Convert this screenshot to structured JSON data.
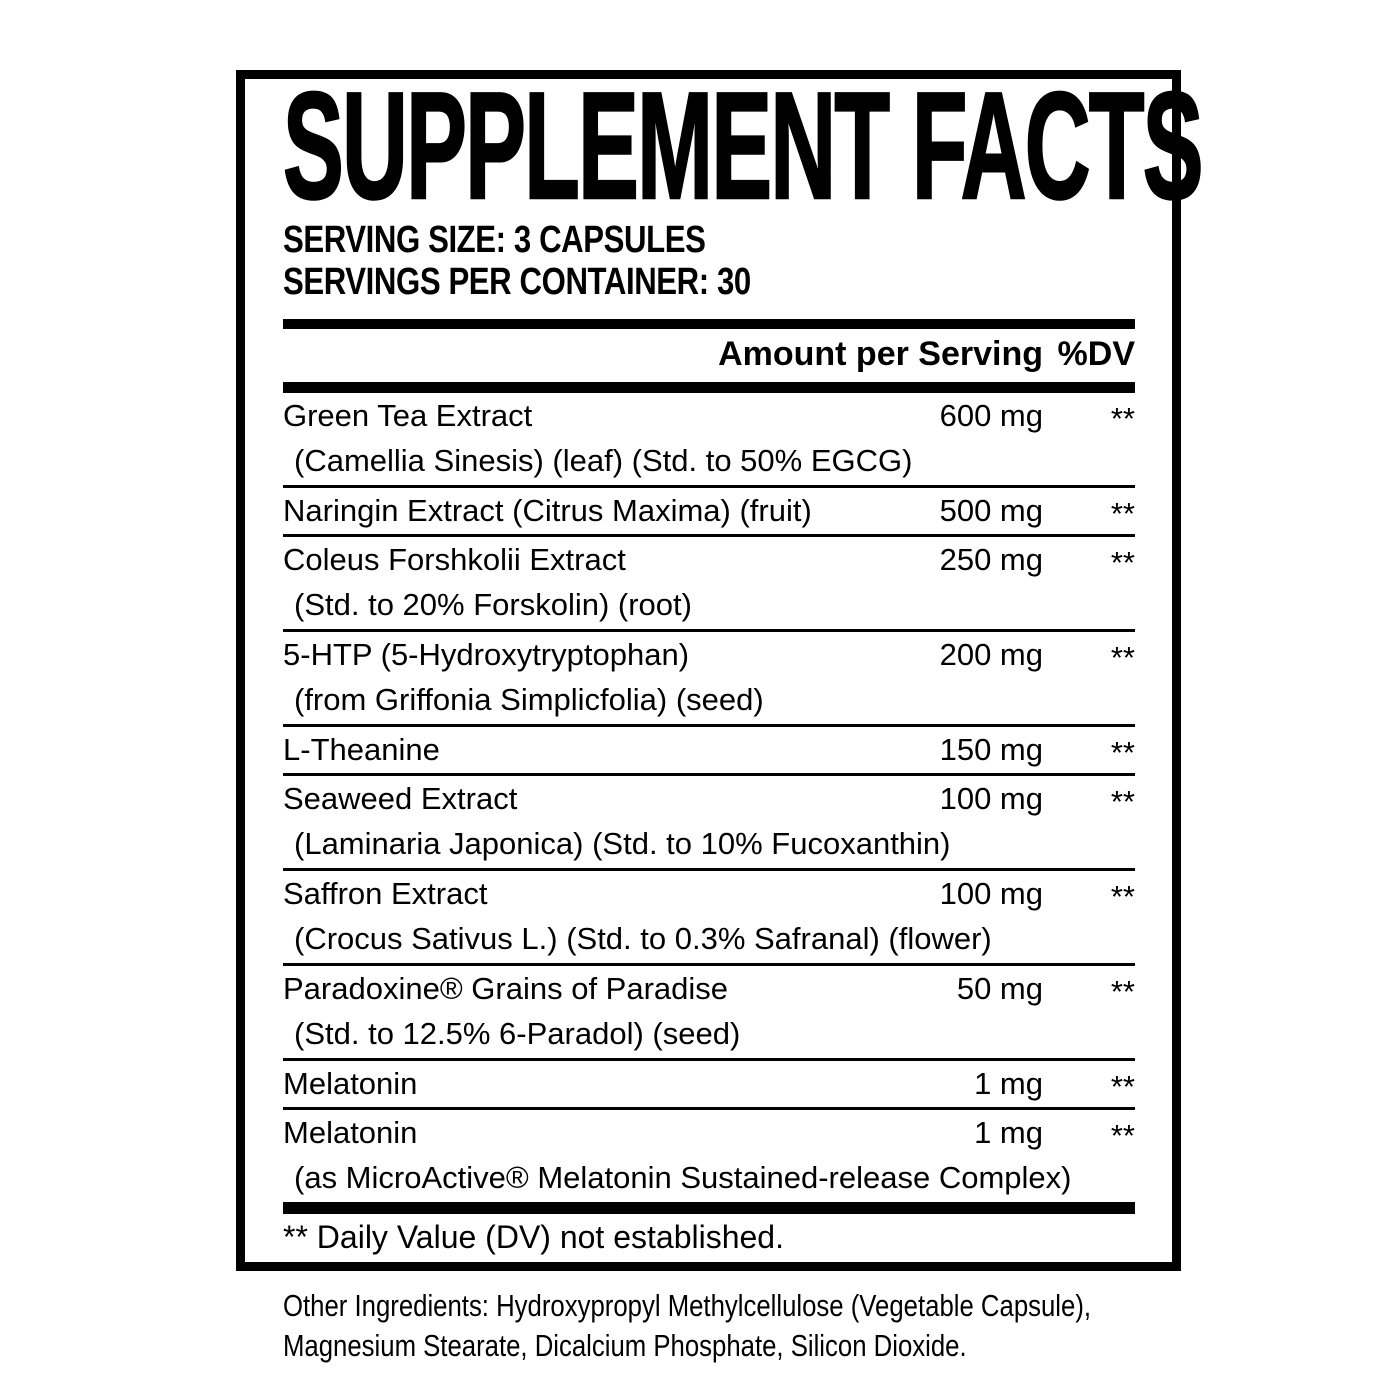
{
  "label": {
    "title": "SUPPLEMENT FACTS",
    "serving_size": "SERVING SIZE: 3 CAPSULES",
    "servings_per_container": "SERVINGS PER CONTAINER: 30",
    "columns": {
      "amount": "Amount per Serving",
      "dv": "%DV"
    },
    "rows": [
      {
        "name": "Green Tea Extract",
        "sub": "(Camellia Sinesis) (leaf) (Std. to 50% EGCG)",
        "amount": "600 mg",
        "dv": "**"
      },
      {
        "name": "Naringin Extract (Citrus Maxima) (fruit)",
        "amount": "500 mg",
        "dv": "**"
      },
      {
        "name": "Coleus Forshkolii Extract",
        "sub": "(Std. to 20% Forskolin) (root)",
        "amount": "250 mg",
        "dv": "**"
      },
      {
        "name": "5-HTP (5-Hydroxytryptophan)",
        "sub": "(from Griffonia Simplicfolia) (seed)",
        "amount": "200 mg",
        "dv": "**"
      },
      {
        "name": "L-Theanine",
        "amount": "150 mg",
        "dv": "**"
      },
      {
        "name": "Seaweed Extract",
        "sub": "(Laminaria Japonica) (Std. to 10% Fucoxanthin)",
        "amount": "100 mg",
        "dv": "**"
      },
      {
        "name": "Saffron Extract",
        "sub": "(Crocus Sativus L.) (Std. to 0.3% Safranal) (flower)",
        "amount": "100 mg",
        "dv": "**"
      },
      {
        "name": "Paradoxine® Grains of Paradise",
        "sub": "(Std. to 12.5% 6-Paradol) (seed)",
        "amount": "50 mg",
        "dv": "**"
      },
      {
        "name": "Melatonin",
        "amount": "1 mg",
        "dv": "**"
      },
      {
        "name": "Melatonin",
        "sub": "(as MicroActive® Melatonin Sustained-release Complex)",
        "amount": "1 mg",
        "dv": "**"
      }
    ],
    "footnote": "** Daily Value (DV) not established.",
    "other_ingredients": [
      "Other Ingredients: Hydroxypropyl Methylcellulose (Vegetable Capsule),",
      "Magnesium Stearate, Dicalcium Phosphate, Silicon Dioxide."
    ],
    "colors": {
      "text": "#000000",
      "background": "#ffffff"
    }
  }
}
